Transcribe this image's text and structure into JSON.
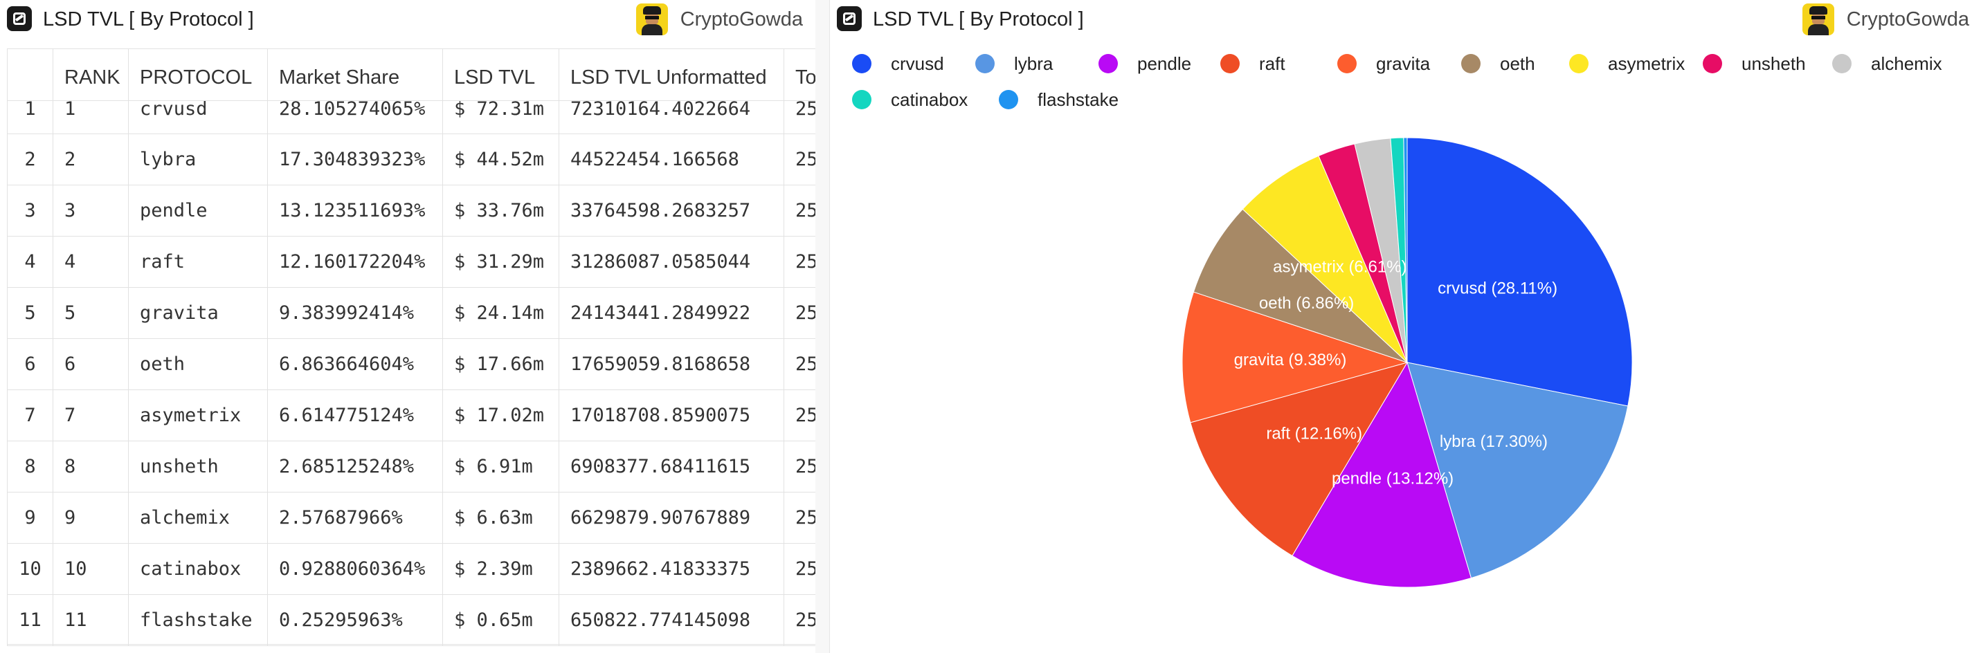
{
  "left_panel": {
    "title": "LSD TVL [ By Protocol ]",
    "user": "CryptoGowda",
    "table": {
      "columns": [
        "",
        "RANK",
        "PROTOCOL",
        "Market Share",
        "LSD TVL",
        "LSD TVL Unformatted",
        "To"
      ],
      "rows": [
        {
          "idx": "1",
          "rank": "1",
          "protocol": "crvusd",
          "share": "28.105274065%",
          "tvl": "$ 72.31m",
          "raw": "72310164.4022664",
          "to": "25"
        },
        {
          "idx": "2",
          "rank": "2",
          "protocol": "lybra",
          "share": "17.304839323%",
          "tvl": "$ 44.52m",
          "raw": "44522454.166568",
          "to": "25"
        },
        {
          "idx": "3",
          "rank": "3",
          "protocol": "pendle",
          "share": "13.123511693%",
          "tvl": "$ 33.76m",
          "raw": "33764598.2683257",
          "to": "25"
        },
        {
          "idx": "4",
          "rank": "4",
          "protocol": "raft",
          "share": "12.160172204%",
          "tvl": "$ 31.29m",
          "raw": "31286087.0585044",
          "to": "25"
        },
        {
          "idx": "5",
          "rank": "5",
          "protocol": "gravita",
          "share": "9.383992414%",
          "tvl": "$ 24.14m",
          "raw": "24143441.2849922",
          "to": "25"
        },
        {
          "idx": "6",
          "rank": "6",
          "protocol": "oeth",
          "share": "6.863664604%",
          "tvl": "$ 17.66m",
          "raw": "17659059.8168658",
          "to": "25"
        },
        {
          "idx": "7",
          "rank": "7",
          "protocol": "asymetrix",
          "share": "6.614775124%",
          "tvl": "$ 17.02m",
          "raw": "17018708.8590075",
          "to": "25"
        },
        {
          "idx": "8",
          "rank": "8",
          "protocol": "unsheth",
          "share": "2.685125248%",
          "tvl": "$ 6.91m",
          "raw": "6908377.68411615",
          "to": "25"
        },
        {
          "idx": "9",
          "rank": "9",
          "protocol": "alchemix",
          "share": "2.57687966%",
          "tvl": "$ 6.63m",
          "raw": "6629879.90767889",
          "to": "25"
        },
        {
          "idx": "10",
          "rank": "10",
          "protocol": "catinabox",
          "share": "0.9288060364%",
          "tvl": "$ 2.39m",
          "raw": "2389662.41833375",
          "to": "25"
        },
        {
          "idx": "11",
          "rank": "11",
          "protocol": "flashstake",
          "share": "0.25295963%",
          "tvl": "$ 0.65m",
          "raw": "650822.774145098",
          "to": "25"
        }
      ]
    }
  },
  "right_panel": {
    "title": "LSD TVL [ By Protocol ]",
    "user": "CryptoGowda"
  },
  "chart_data": {
    "type": "pie",
    "title": "LSD TVL [ By Protocol ]",
    "legend_position": "top",
    "categories": [
      "crvusd",
      "lybra",
      "pendle",
      "raft",
      "gravita",
      "oeth",
      "asymetrix",
      "unsheth",
      "alchemix",
      "catinabox",
      "flashstake"
    ],
    "values": [
      28.105274065,
      17.304839323,
      13.123511693,
      12.160172204,
      9.383992414,
      6.863664604,
      6.614775124,
      2.685125248,
      2.57687966,
      0.9288060364,
      0.25295963
    ],
    "colors": [
      "#1a4cf5",
      "#5896e3",
      "#b90af5",
      "#ef4d25",
      "#fd5d2e",
      "#a78966",
      "#fde723",
      "#e70d65",
      "#c9c9c9",
      "#14d6c0",
      "#1f93f0"
    ],
    "slice_labels": [
      "crvusd (28.11%)",
      "lybra (17.30%)",
      "pendle (13.12%)",
      "raft (12.16%)",
      "gravita (9.38%)",
      "oeth (6.86%)",
      "asymetrix (6.61%)",
      "",
      "",
      "",
      ""
    ]
  }
}
